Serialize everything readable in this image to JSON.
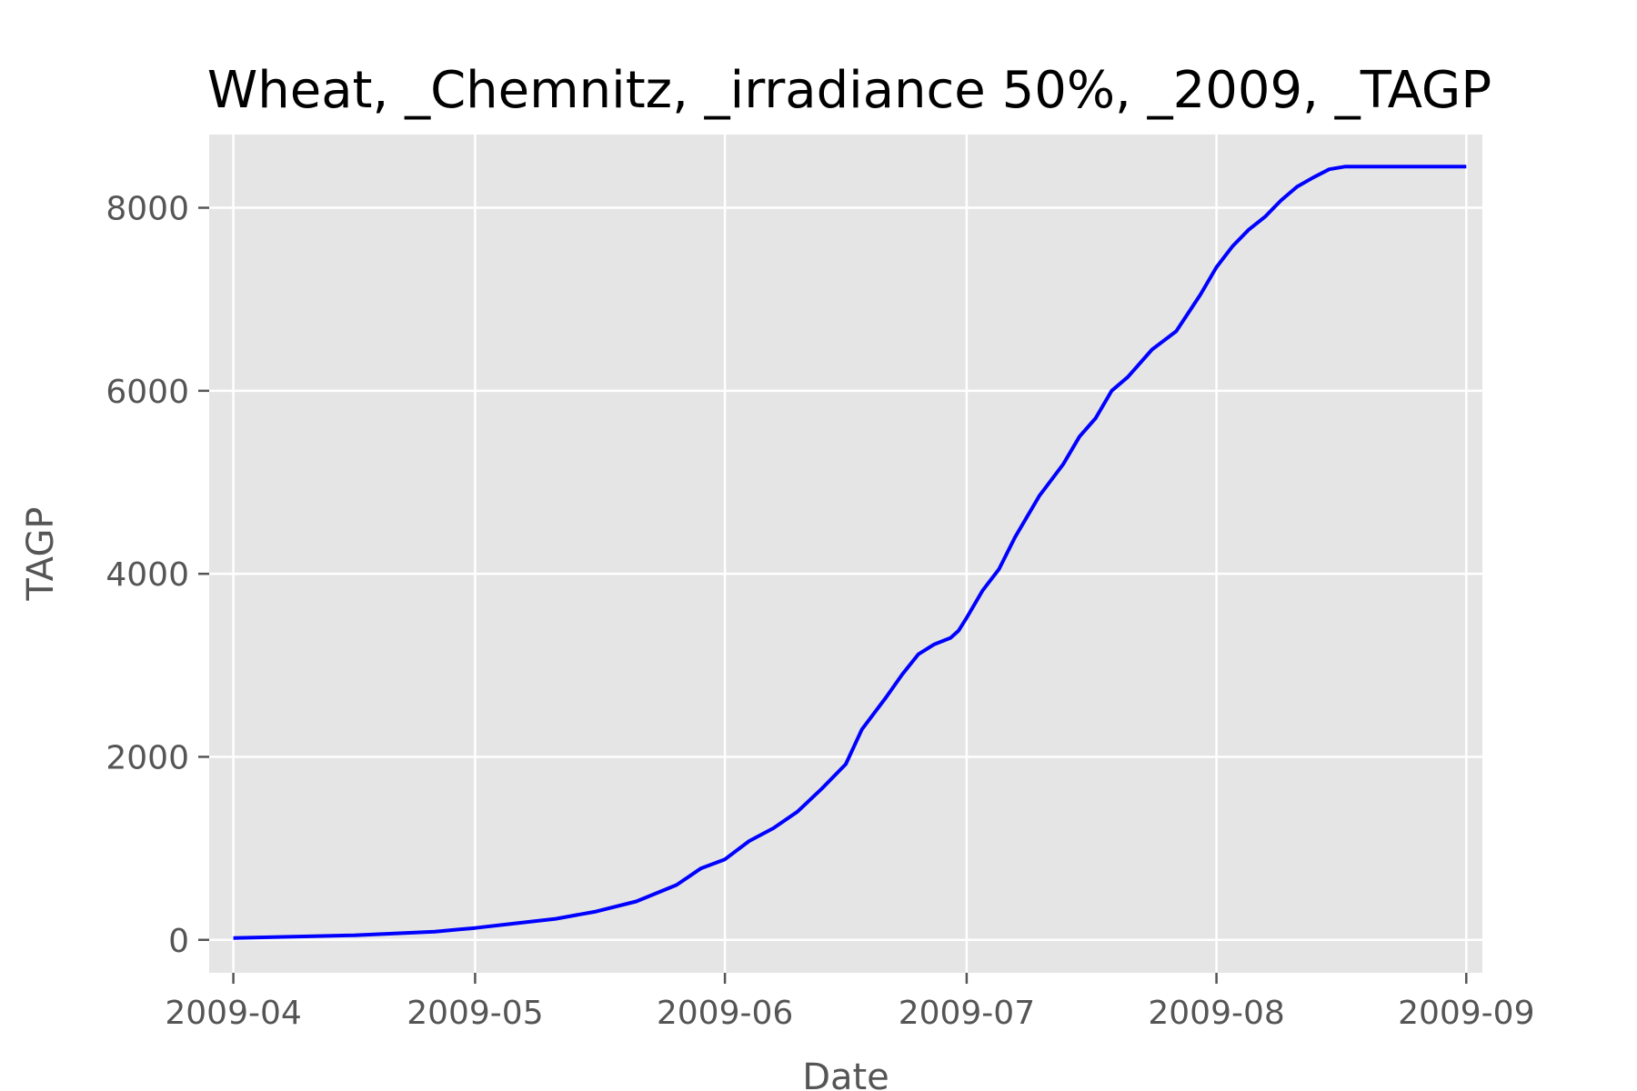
{
  "chart_data": {
    "type": "line",
    "title": "Wheat, _Chemnitz, _irradiance 50%, _2009, _TAGP",
    "xlabel": "Date",
    "ylabel": "TAGP",
    "x_ticks": [
      "2009-04",
      "2009-05",
      "2009-06",
      "2009-07",
      "2009-08",
      "2009-09"
    ],
    "y_ticks": [
      "0",
      "2000",
      "4000",
      "6000",
      "8000"
    ],
    "xlim": [
      "2009-03-29",
      "2009-09-03"
    ],
    "ylim": [
      -360,
      8800
    ],
    "grid": true,
    "legend": "none",
    "colors": {
      "line": "#0000ff",
      "plot_bg": "#e5e5e5",
      "grid": "#ffffff",
      "tick": "#555555"
    },
    "series": [
      {
        "color": "#0000ff",
        "points": [
          [
            "2009-04-01",
            20
          ],
          [
            "2009-04-11",
            40
          ],
          [
            "2009-04-16",
            50
          ],
          [
            "2009-04-21",
            70
          ],
          [
            "2009-04-26",
            90
          ],
          [
            "2009-05-01",
            130
          ],
          [
            "2009-05-06",
            180
          ],
          [
            "2009-05-11",
            230
          ],
          [
            "2009-05-16",
            310
          ],
          [
            "2009-05-21",
            420
          ],
          [
            "2009-05-26",
            600
          ],
          [
            "2009-05-29",
            780
          ],
          [
            "2009-06-01",
            880
          ],
          [
            "2009-06-04",
            1080
          ],
          [
            "2009-06-07",
            1220
          ],
          [
            "2009-06-10",
            1400
          ],
          [
            "2009-06-13",
            1650
          ],
          [
            "2009-06-16",
            1920
          ],
          [
            "2009-06-18",
            2300
          ],
          [
            "2009-06-21",
            2650
          ],
          [
            "2009-06-23",
            2900
          ],
          [
            "2009-06-25",
            3120
          ],
          [
            "2009-06-27",
            3230
          ],
          [
            "2009-06-29",
            3300
          ],
          [
            "2009-06-30",
            3380
          ],
          [
            "2009-07-01",
            3520
          ],
          [
            "2009-07-03",
            3820
          ],
          [
            "2009-07-05",
            4050
          ],
          [
            "2009-07-07",
            4400
          ],
          [
            "2009-07-10",
            4850
          ],
          [
            "2009-07-13",
            5200
          ],
          [
            "2009-07-15",
            5500
          ],
          [
            "2009-07-17",
            5700
          ],
          [
            "2009-07-19",
            6000
          ],
          [
            "2009-07-21",
            6150
          ],
          [
            "2009-07-24",
            6450
          ],
          [
            "2009-07-27",
            6650
          ],
          [
            "2009-07-30",
            7050
          ],
          [
            "2009-08-01",
            7350
          ],
          [
            "2009-08-03",
            7580
          ],
          [
            "2009-08-05",
            7760
          ],
          [
            "2009-08-07",
            7900
          ],
          [
            "2009-08-09",
            8080
          ],
          [
            "2009-08-11",
            8230
          ],
          [
            "2009-08-13",
            8330
          ],
          [
            "2009-08-15",
            8420
          ],
          [
            "2009-08-17",
            8450
          ],
          [
            "2009-09-01",
            8450
          ]
        ]
      }
    ]
  }
}
